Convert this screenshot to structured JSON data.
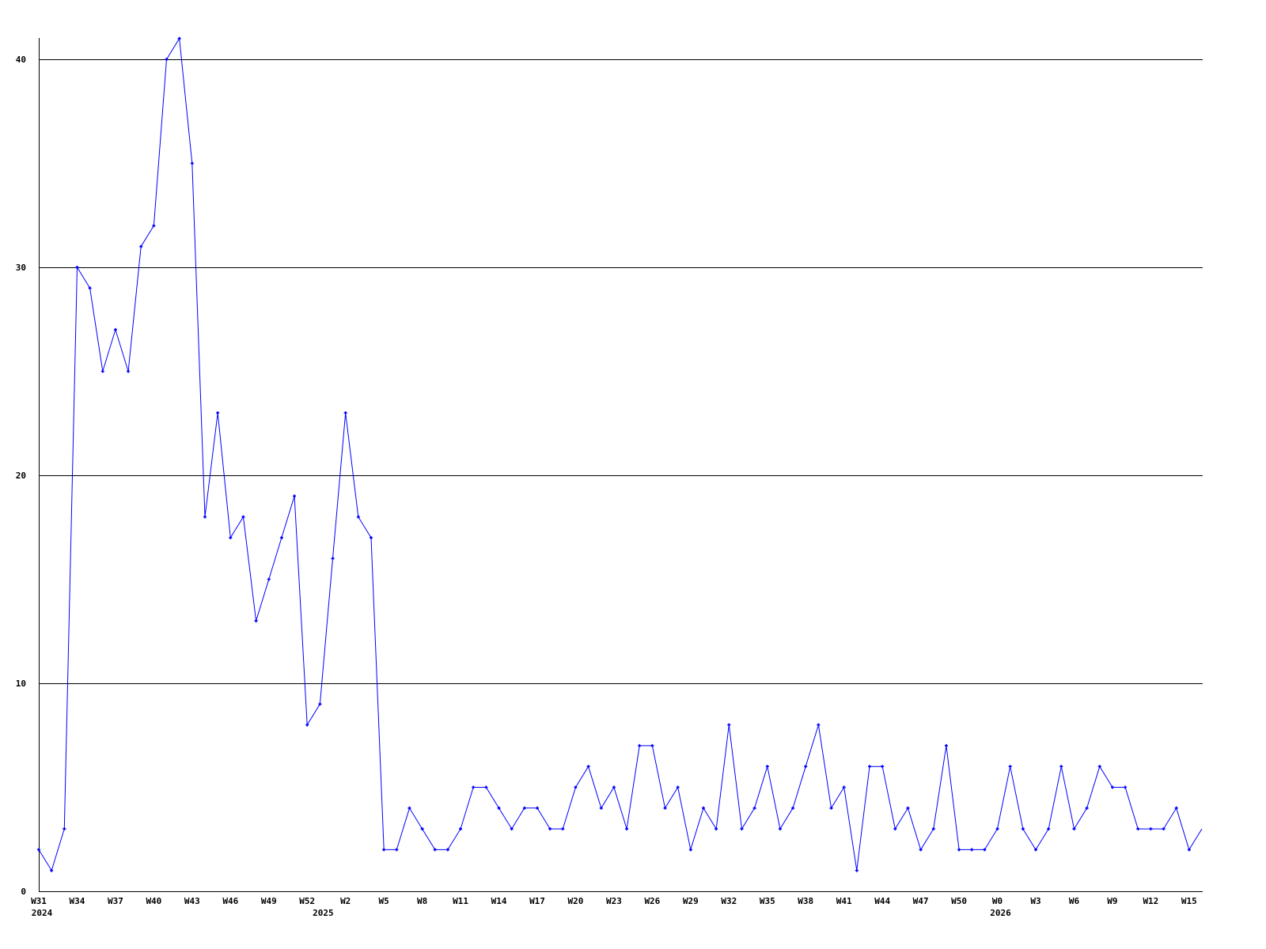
{
  "chart_data": {
    "type": "line",
    "title": "",
    "xlabel": "",
    "ylabel": "",
    "ylim": [
      0,
      41
    ],
    "yticks": [
      0,
      10,
      20,
      30,
      40
    ],
    "grid": "horizontal",
    "line_color": "#0000ff",
    "grid_color": "#000000",
    "x_tick_labels": [
      {
        "index": 0,
        "label": "W31"
      },
      {
        "index": 3,
        "label": "W34"
      },
      {
        "index": 6,
        "label": "W37"
      },
      {
        "index": 9,
        "label": "W40"
      },
      {
        "index": 12,
        "label": "W43"
      },
      {
        "index": 15,
        "label": "W46"
      },
      {
        "index": 18,
        "label": "W49"
      },
      {
        "index": 21,
        "label": "W52"
      },
      {
        "index": 24,
        "label": "W2"
      },
      {
        "index": 27,
        "label": "W5"
      },
      {
        "index": 30,
        "label": "W8"
      },
      {
        "index": 33,
        "label": "W11"
      },
      {
        "index": 36,
        "label": "W14"
      },
      {
        "index": 39,
        "label": "W17"
      },
      {
        "index": 42,
        "label": "W20"
      },
      {
        "index": 45,
        "label": "W23"
      },
      {
        "index": 48,
        "label": "W26"
      },
      {
        "index": 51,
        "label": "W29"
      },
      {
        "index": 54,
        "label": "W32"
      },
      {
        "index": 57,
        "label": "W35"
      },
      {
        "index": 60,
        "label": "W38"
      },
      {
        "index": 63,
        "label": "W41"
      },
      {
        "index": 66,
        "label": "W44"
      },
      {
        "index": 69,
        "label": "W47"
      },
      {
        "index": 72,
        "label": "W50"
      },
      {
        "index": 75,
        "label": "W0"
      },
      {
        "index": 78,
        "label": "W3"
      },
      {
        "index": 81,
        "label": "W6"
      },
      {
        "index": 84,
        "label": "W9"
      },
      {
        "index": 87,
        "label": "W12"
      },
      {
        "index": 90,
        "label": "W15"
      }
    ],
    "year_labels": [
      {
        "index": 0,
        "label": "2024"
      },
      {
        "index": 22,
        "label": "2025"
      },
      {
        "index": 75,
        "label": "2026"
      }
    ],
    "values": [
      2,
      1,
      3,
      30,
      29,
      25,
      27,
      25,
      31,
      32,
      40,
      41,
      35,
      18,
      23,
      17,
      18,
      13,
      15,
      17,
      19,
      8,
      9,
      16,
      23,
      18,
      17,
      2,
      2,
      4,
      3,
      2,
      2,
      3,
      5,
      5,
      4,
      3,
      4,
      4,
      3,
      3,
      5,
      6,
      4,
      5,
      3,
      7,
      7,
      4,
      5,
      2,
      4,
      3,
      8,
      3,
      4,
      6,
      3,
      4,
      6,
      8,
      4,
      5,
      1,
      6,
      6,
      3,
      4,
      2,
      3,
      7,
      2,
      2,
      2,
      3,
      6,
      3,
      2,
      3,
      6,
      3,
      4,
      6,
      5,
      5,
      3,
      3,
      3,
      4,
      2,
      3
    ]
  }
}
